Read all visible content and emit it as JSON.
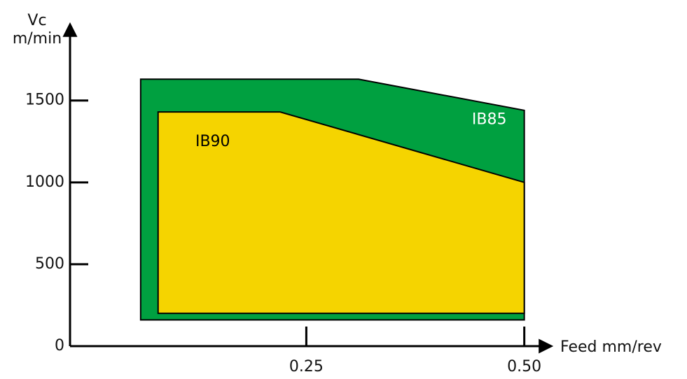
{
  "chart_data": {
    "type": "area",
    "ylabel": [
      "Vc",
      "m/min"
    ],
    "xlabel": "Feed mm/rev",
    "series": [
      {
        "name": "IB85",
        "color": "#00a040",
        "label_color": "#ffffff",
        "x": [
          0.06,
          0.31,
          0.5,
          0.5,
          0.06
        ],
        "values": [
          1630,
          1630,
          1440,
          160,
          160
        ]
      },
      {
        "name": "IB90",
        "color": "#f5d400",
        "label_color": "#000000",
        "x": [
          0.08,
          0.22,
          0.5,
          0.5,
          0.08
        ],
        "values": [
          1430,
          1430,
          1000,
          200,
          200
        ]
      }
    ],
    "xlim": [
      -0.021,
      0.53
    ],
    "ylim": [
      0,
      1960
    ],
    "xticks": [
      0.25,
      {
        "value": 0.5,
        "label": "0.50"
      }
    ],
    "yticks": [
      0,
      500,
      1000,
      1500
    ]
  }
}
